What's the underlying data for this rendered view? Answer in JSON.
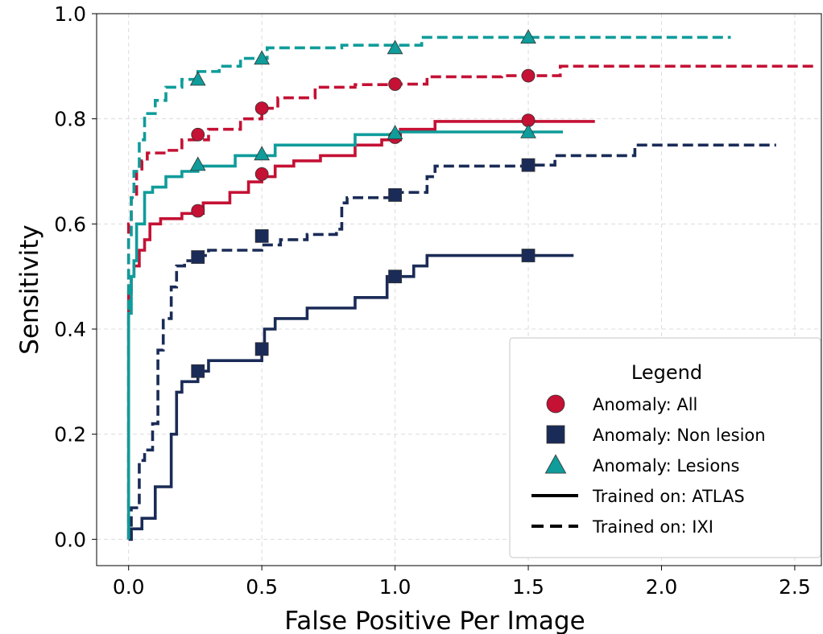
{
  "chart_data": {
    "type": "line",
    "xlabel": "False Positive Per Image",
    "ylabel": "Sensitivity",
    "xlim": [
      -0.12,
      2.6
    ],
    "ylim": [
      -0.05,
      1.0
    ],
    "xticks": [
      0.0,
      0.5,
      1.0,
      1.5,
      2.0,
      2.5
    ],
    "xtick_labels": [
      "0.0",
      "0.5",
      "1.0",
      "1.5",
      "2.0",
      "2.5"
    ],
    "yticks": [
      0.0,
      0.2,
      0.4,
      0.6,
      0.8,
      1.0
    ],
    "ytick_labels": [
      "0.0",
      "0.2",
      "0.4",
      "0.6",
      "0.8",
      "1.0"
    ],
    "grid": true,
    "legend": {
      "title": "Legend",
      "placement": "lower-right",
      "entries": [
        {
          "label": "Anomaly: All",
          "marker": "circle",
          "color": "#c41134"
        },
        {
          "label": "Anomaly: Non lesion",
          "marker": "square",
          "color": "#1a2b57"
        },
        {
          "label": "Anomaly: Lesions",
          "marker": "triangle",
          "color": "#0f9c9a"
        },
        {
          "label": "Trained on: ATLAS",
          "line": "solid",
          "color": "#000000"
        },
        {
          "label": "Trained on: IXI",
          "line": "dashed",
          "color": "#000000"
        }
      ]
    },
    "series": [
      {
        "color": "#c41134",
        "style": "solid",
        "marker": "circle",
        "x": [
          0.0,
          0.0,
          0.0,
          0.01,
          0.02,
          0.04,
          0.06,
          0.08,
          0.12,
          0.2,
          0.28,
          0.38,
          0.45,
          0.5,
          0.55,
          0.62,
          0.72,
          0.85,
          0.95,
          1.02,
          1.15,
          1.75
        ],
        "y": [
          0.0,
          0.3,
          0.47,
          0.5,
          0.52,
          0.55,
          0.57,
          0.6,
          0.61,
          0.62,
          0.64,
          0.66,
          0.68,
          0.69,
          0.71,
          0.72,
          0.73,
          0.75,
          0.76,
          0.78,
          0.795,
          0.795
        ],
        "marker_x": [
          0.26,
          0.5,
          1.0,
          1.5
        ],
        "marker_y": [
          0.625,
          0.695,
          0.765,
          0.797
        ]
      },
      {
        "color": "#c41134",
        "style": "dashed",
        "marker": "circle",
        "x": [
          0.0,
          0.0,
          0.01,
          0.03,
          0.05,
          0.07,
          0.14,
          0.2,
          0.3,
          0.42,
          0.5,
          0.56,
          0.7,
          0.85,
          1.0,
          1.12,
          1.4,
          1.62,
          2.58
        ],
        "y": [
          0.0,
          0.6,
          0.65,
          0.7,
          0.72,
          0.735,
          0.74,
          0.76,
          0.78,
          0.8,
          0.82,
          0.84,
          0.86,
          0.865,
          0.866,
          0.88,
          0.882,
          0.9,
          0.9
        ],
        "marker_x": [
          0.26,
          0.5,
          1.0,
          1.5
        ],
        "marker_y": [
          0.77,
          0.82,
          0.866,
          0.882
        ]
      },
      {
        "color": "#1a2b57",
        "style": "solid",
        "marker": "square",
        "x": [
          0.0,
          0.01,
          0.05,
          0.1,
          0.16,
          0.18,
          0.2,
          0.26,
          0.3,
          0.5,
          0.51,
          0.55,
          0.67,
          0.85,
          0.97,
          1.07,
          1.12,
          1.67
        ],
        "y": [
          0.0,
          0.02,
          0.04,
          0.1,
          0.2,
          0.28,
          0.3,
          0.32,
          0.34,
          0.36,
          0.4,
          0.42,
          0.44,
          0.46,
          0.5,
          0.52,
          0.54,
          0.54
        ],
        "marker_x": [
          0.26,
          0.5,
          1.0,
          1.5
        ],
        "marker_y": [
          0.32,
          0.362,
          0.5,
          0.54
        ]
      },
      {
        "color": "#1a2b57",
        "style": "dashed",
        "marker": "square",
        "x": [
          0.0,
          0.01,
          0.04,
          0.06,
          0.09,
          0.11,
          0.13,
          0.16,
          0.18,
          0.21,
          0.26,
          0.3,
          0.5,
          0.57,
          0.67,
          0.78,
          0.8,
          0.8,
          0.8,
          0.82,
          0.84,
          1.0,
          1.12,
          1.15,
          1.5,
          1.6,
          1.9,
          2.43
        ],
        "y": [
          0.0,
          0.06,
          0.15,
          0.17,
          0.22,
          0.36,
          0.42,
          0.48,
          0.52,
          0.53,
          0.54,
          0.55,
          0.56,
          0.57,
          0.58,
          0.59,
          0.62,
          0.63,
          0.64,
          0.65,
          0.65,
          0.66,
          0.69,
          0.71,
          0.712,
          0.73,
          0.75,
          0.75
        ],
        "marker_x": [
          0.26,
          0.5,
          1.0,
          1.5
        ],
        "marker_y": [
          0.537,
          0.577,
          0.655,
          0.712
        ]
      },
      {
        "color": "#0f9c9a",
        "style": "solid",
        "marker": "triangle",
        "x": [
          0.0,
          0.0,
          0.01,
          0.02,
          0.03,
          0.06,
          0.09,
          0.14,
          0.2,
          0.26,
          0.4,
          0.55,
          0.85,
          1.0,
          1.63
        ],
        "y": [
          0.0,
          0.43,
          0.5,
          0.53,
          0.6,
          0.66,
          0.67,
          0.69,
          0.7,
          0.71,
          0.73,
          0.75,
          0.77,
          0.775,
          0.775
        ],
        "marker_x": [
          0.26,
          0.5,
          1.0,
          1.5
        ],
        "marker_y": [
          0.713,
          0.733,
          0.773,
          0.775
        ]
      },
      {
        "color": "#0f9c9a",
        "style": "dashed",
        "marker": "triangle",
        "x": [
          0.0,
          0.0,
          0.01,
          0.02,
          0.04,
          0.06,
          0.1,
          0.14,
          0.2,
          0.26,
          0.34,
          0.42,
          0.5,
          0.52,
          0.8,
          1.1,
          2.26
        ],
        "y": [
          0.0,
          0.57,
          0.65,
          0.7,
          0.76,
          0.81,
          0.835,
          0.86,
          0.875,
          0.89,
          0.9,
          0.915,
          0.915,
          0.935,
          0.94,
          0.955,
          0.955
        ],
        "marker_x": [
          0.26,
          0.5,
          1.0,
          1.5
        ],
        "marker_y": [
          0.875,
          0.915,
          0.935,
          0.955
        ]
      }
    ]
  }
}
